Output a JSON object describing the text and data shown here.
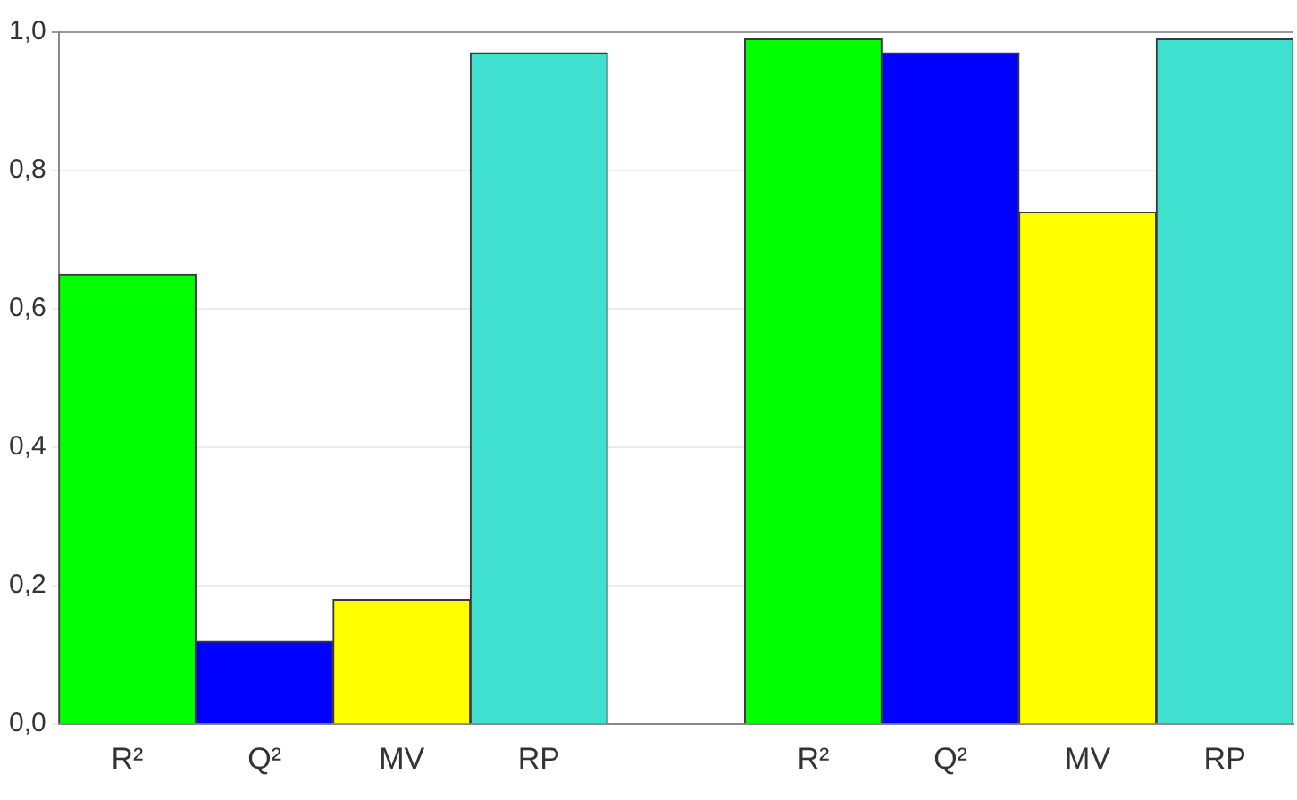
{
  "chart_data": {
    "type": "bar",
    "categories": [
      "R²",
      "Q²",
      "MV",
      "RP",
      null,
      "R²",
      "Q²",
      "MV",
      "RP"
    ],
    "values": [
      0.65,
      0.12,
      0.18,
      0.97,
      null,
      0.99,
      0.97,
      0.74,
      0.99
    ],
    "colors": [
      "#00ff00",
      "#0000ff",
      "#ffff00",
      "#40e0d0",
      null,
      "#00ff00",
      "#0000ff",
      "#ffff00",
      "#40e0d0"
    ],
    "ylim": [
      0,
      1
    ],
    "yticks": [
      {
        "value": 0,
        "label": "0,0"
      },
      {
        "value": 0.2,
        "label": "0,2"
      },
      {
        "value": 0.4,
        "label": "0,4"
      },
      {
        "value": 0.6,
        "label": "0,6"
      },
      {
        "value": 0.8,
        "label": "0,8"
      },
      {
        "value": 1,
        "label": "1,0"
      }
    ],
    "grid": "y",
    "legend": false
  }
}
